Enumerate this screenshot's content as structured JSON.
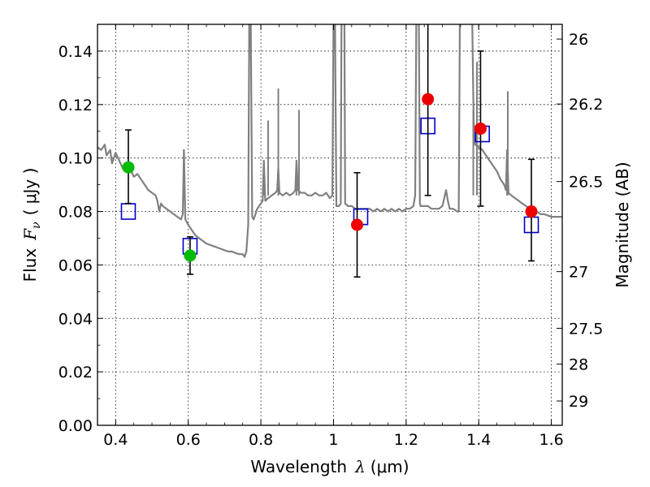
{
  "chart_data": {
    "type": "scatter",
    "xlabel_main": "Wavelength",
    "xlabel_sym": "λ",
    "xlabel_unit": "(μm)",
    "ylabel_main": "Flux",
    "ylabel_sym": "F",
    "ylabel_sub": "ν",
    "ylabel_unit": "( μJy )",
    "y2label": "Magnitude (AB)",
    "xlim": [
      0.35,
      1.63
    ],
    "ylim": [
      0.0,
      0.15
    ],
    "grid": true,
    "x_ticks": [
      0.4,
      0.6,
      0.8,
      1.0,
      1.2,
      1.4,
      1.6
    ],
    "x_tick_labels": [
      "0.4",
      "0.6",
      "0.8",
      "1",
      "1.2",
      "1.4",
      "1.6"
    ],
    "y_ticks": [
      0.0,
      0.02,
      0.04,
      0.06,
      0.08,
      0.1,
      0.12,
      0.14
    ],
    "y_tick_labels": [
      "0.00",
      "0.02",
      "0.04",
      "0.06",
      "0.08",
      "0.10",
      "0.12",
      "0.14"
    ],
    "y2_ticks": [
      {
        "label": "26",
        "flux": 0.1445
      },
      {
        "label": "26.2",
        "flux": 0.1202
      },
      {
        "label": "26.5",
        "flux": 0.0912
      },
      {
        "label": "27",
        "flux": 0.0575
      },
      {
        "label": "27.5",
        "flux": 0.0363
      },
      {
        "label": "28",
        "flux": 0.0229
      },
      {
        "label": "29",
        "flux": 0.0091
      }
    ],
    "colors": {
      "model": "#808080",
      "template": "#0000cc",
      "green": "#00bb00",
      "red": "#ee0000",
      "error": "#000000",
      "grid": "#000000"
    },
    "series": [
      {
        "kind": "line",
        "points": [
          [
            0.35,
            0.104
          ],
          [
            0.36,
            0.103
          ],
          [
            0.37,
            0.105
          ],
          [
            0.375,
            0.101
          ],
          [
            0.385,
            0.103
          ],
          [
            0.39,
            0.098
          ],
          [
            0.4,
            0.102
          ],
          [
            0.41,
            0.099
          ],
          [
            0.42,
            0.096
          ],
          [
            0.425,
            0.098
          ],
          [
            0.43,
            0.095
          ],
          [
            0.44,
            0.096
          ],
          [
            0.45,
            0.093
          ],
          [
            0.46,
            0.094
          ],
          [
            0.47,
            0.092
          ],
          [
            0.48,
            0.09
          ],
          [
            0.49,
            0.088
          ],
          [
            0.5,
            0.087
          ],
          [
            0.51,
            0.086
          ],
          [
            0.515,
            0.084
          ],
          [
            0.52,
            0.08
          ],
          [
            0.525,
            0.083
          ],
          [
            0.53,
            0.082
          ],
          [
            0.54,
            0.081
          ],
          [
            0.55,
            0.08
          ],
          [
            0.56,
            0.079
          ],
          [
            0.57,
            0.078
          ],
          [
            0.58,
            0.077
          ],
          [
            0.585,
            0.079
          ],
          [
            0.588,
            0.103
          ],
          [
            0.592,
            0.077
          ],
          [
            0.6,
            0.075
          ],
          [
            0.61,
            0.073
          ],
          [
            0.62,
            0.071
          ],
          [
            0.63,
            0.07
          ],
          [
            0.64,
            0.069
          ],
          [
            0.65,
            0.068
          ],
          [
            0.66,
            0.0675
          ],
          [
            0.67,
            0.067
          ],
          [
            0.68,
            0.0665
          ],
          [
            0.69,
            0.066
          ],
          [
            0.7,
            0.0655
          ],
          [
            0.71,
            0.065
          ],
          [
            0.72,
            0.065
          ],
          [
            0.73,
            0.0645
          ],
          [
            0.74,
            0.064
          ],
          [
            0.75,
            0.064
          ],
          [
            0.755,
            0.063
          ],
          [
            0.76,
            0.065
          ],
          [
            0.765,
            0.075
          ],
          [
            0.768,
            0.152
          ],
          [
            0.772,
            0.152
          ],
          [
            0.776,
            0.078
          ],
          [
            0.78,
            0.077
          ],
          [
            0.79,
            0.081
          ],
          [
            0.8,
            0.083
          ],
          [
            0.805,
            0.084
          ],
          [
            0.808,
            0.099
          ],
          [
            0.812,
            0.084
          ],
          [
            0.82,
            0.085
          ],
          [
            0.83,
            0.086
          ],
          [
            0.84,
            0.087
          ],
          [
            0.845,
            0.088
          ],
          [
            0.848,
            0.096
          ],
          [
            0.851,
            0.087
          ],
          [
            0.86,
            0.086
          ],
          [
            0.87,
            0.087
          ],
          [
            0.88,
            0.086
          ],
          [
            0.89,
            0.087
          ],
          [
            0.895,
            0.088
          ],
          [
            0.898,
            0.099
          ],
          [
            0.902,
            0.088
          ],
          [
            0.91,
            0.087
          ],
          [
            0.92,
            0.087
          ],
          [
            0.93,
            0.086
          ],
          [
            0.94,
            0.086
          ],
          [
            0.95,
            0.087
          ],
          [
            0.96,
            0.086
          ],
          [
            0.97,
            0.086
          ],
          [
            0.98,
            0.087
          ],
          [
            0.99,
            0.085
          ],
          [
            0.997,
            0.086
          ],
          [
            1.0,
            0.152
          ],
          [
            1.004,
            0.152
          ],
          [
            1.008,
            0.082
          ],
          [
            1.015,
            0.082
          ],
          [
            1.02,
            0.083
          ],
          [
            1.022,
            0.152
          ],
          [
            1.03,
            0.152
          ],
          [
            1.032,
            0.083
          ],
          [
            1.04,
            0.082
          ],
          [
            1.05,
            0.082
          ],
          [
            1.06,
            0.081
          ],
          [
            1.07,
            0.081
          ],
          [
            1.08,
            0.081
          ],
          [
            1.09,
            0.081
          ],
          [
            1.1,
            0.081
          ],
          [
            1.11,
            0.08
          ],
          [
            1.12,
            0.081
          ],
          [
            1.13,
            0.08
          ],
          [
            1.14,
            0.081
          ],
          [
            1.15,
            0.08
          ],
          [
            1.16,
            0.081
          ],
          [
            1.17,
            0.08
          ],
          [
            1.18,
            0.081
          ],
          [
            1.19,
            0.08
          ],
          [
            1.2,
            0.081
          ],
          [
            1.21,
            0.081
          ],
          [
            1.22,
            0.082
          ],
          [
            1.225,
            0.086
          ],
          [
            1.228,
            0.152
          ],
          [
            1.235,
            0.152
          ],
          [
            1.238,
            0.083
          ],
          [
            1.24,
            0.082
          ],
          [
            1.25,
            0.082
          ],
          [
            1.26,
            0.082
          ],
          [
            1.27,
            0.081
          ],
          [
            1.28,
            0.081
          ],
          [
            1.29,
            0.081
          ],
          [
            1.3,
            0.082
          ],
          [
            1.305,
            0.085
          ],
          [
            1.31,
            0.088
          ],
          [
            1.315,
            0.084
          ],
          [
            1.32,
            0.081
          ],
          [
            1.33,
            0.081
          ],
          [
            1.34,
            0.08
          ],
          [
            1.345,
            0.08
          ],
          [
            1.348,
            0.152
          ],
          [
            1.36,
            0.152
          ],
          [
            1.368,
            0.152
          ],
          [
            1.372,
            0.152
          ],
          [
            1.376,
            0.152
          ],
          [
            1.382,
            0.152
          ],
          [
            1.386,
            0.113
          ],
          [
            1.39,
            0.105
          ],
          [
            1.4,
            0.104
          ],
          [
            1.41,
            0.103
          ],
          [
            1.42,
            0.101
          ],
          [
            1.43,
            0.099
          ],
          [
            1.44,
            0.097
          ],
          [
            1.45,
            0.095
          ],
          [
            1.46,
            0.092
          ],
          [
            1.47,
            0.09
          ],
          [
            1.475,
            0.088
          ],
          [
            1.478,
            0.103
          ],
          [
            1.482,
            0.087
          ],
          [
            1.49,
            0.086
          ],
          [
            1.5,
            0.085
          ],
          [
            1.51,
            0.084
          ],
          [
            1.52,
            0.083
          ],
          [
            1.53,
            0.082
          ],
          [
            1.54,
            0.081
          ],
          [
            1.55,
            0.081
          ],
          [
            1.56,
            0.08
          ],
          [
            1.57,
            0.079
          ],
          [
            1.58,
            0.079
          ],
          [
            1.6,
            0.078
          ],
          [
            1.62,
            0.078
          ],
          [
            1.63,
            0.078
          ]
        ],
        "spikes": [
          {
            "x": 0.588,
            "y": 0.103
          },
          {
            "x": 0.808,
            "y": 0.099
          },
          {
            "x": 0.848,
            "y": 0.096
          },
          {
            "x": 0.898,
            "y": 0.099
          },
          {
            "x": 1.31,
            "y": 0.088
          },
          {
            "x": 1.478,
            "y": 0.103
          },
          {
            "x": 1.395,
            "y": 0.136
          },
          {
            "x": 1.385,
            "y": 0.118
          },
          {
            "x": 0.82,
            "y": 0.114
          },
          {
            "x": 0.848,
            "y": 0.126
          },
          {
            "x": 0.905,
            "y": 0.118
          },
          {
            "x": 1.48,
            "y": 0.125
          }
        ]
      },
      {
        "kind": "template_squares",
        "points": [
          [
            0.435,
            0.08
          ],
          [
            0.605,
            0.067
          ],
          [
            1.075,
            0.078
          ],
          [
            1.26,
            0.112
          ],
          [
            1.41,
            0.109
          ],
          [
            1.545,
            0.075
          ]
        ]
      },
      {
        "kind": "observed_green",
        "points": [
          {
            "x": 0.435,
            "y": 0.0965,
            "lo": 0.083,
            "hi": 0.1105
          },
          {
            "x": 0.605,
            "y": 0.0635,
            "lo": 0.0565,
            "hi": 0.0705
          }
        ]
      },
      {
        "kind": "observed_red",
        "points": [
          {
            "x": 1.065,
            "y": 0.075,
            "lo": 0.0555,
            "hi": 0.0945
          },
          {
            "x": 1.26,
            "y": 0.122,
            "lo": 0.086,
            "hi": 0.152
          },
          {
            "x": 1.405,
            "y": 0.111,
            "lo": 0.082,
            "hi": 0.14
          },
          {
            "x": 1.545,
            "y": 0.08,
            "lo": 0.0615,
            "hi": 0.0995
          }
        ]
      }
    ]
  }
}
